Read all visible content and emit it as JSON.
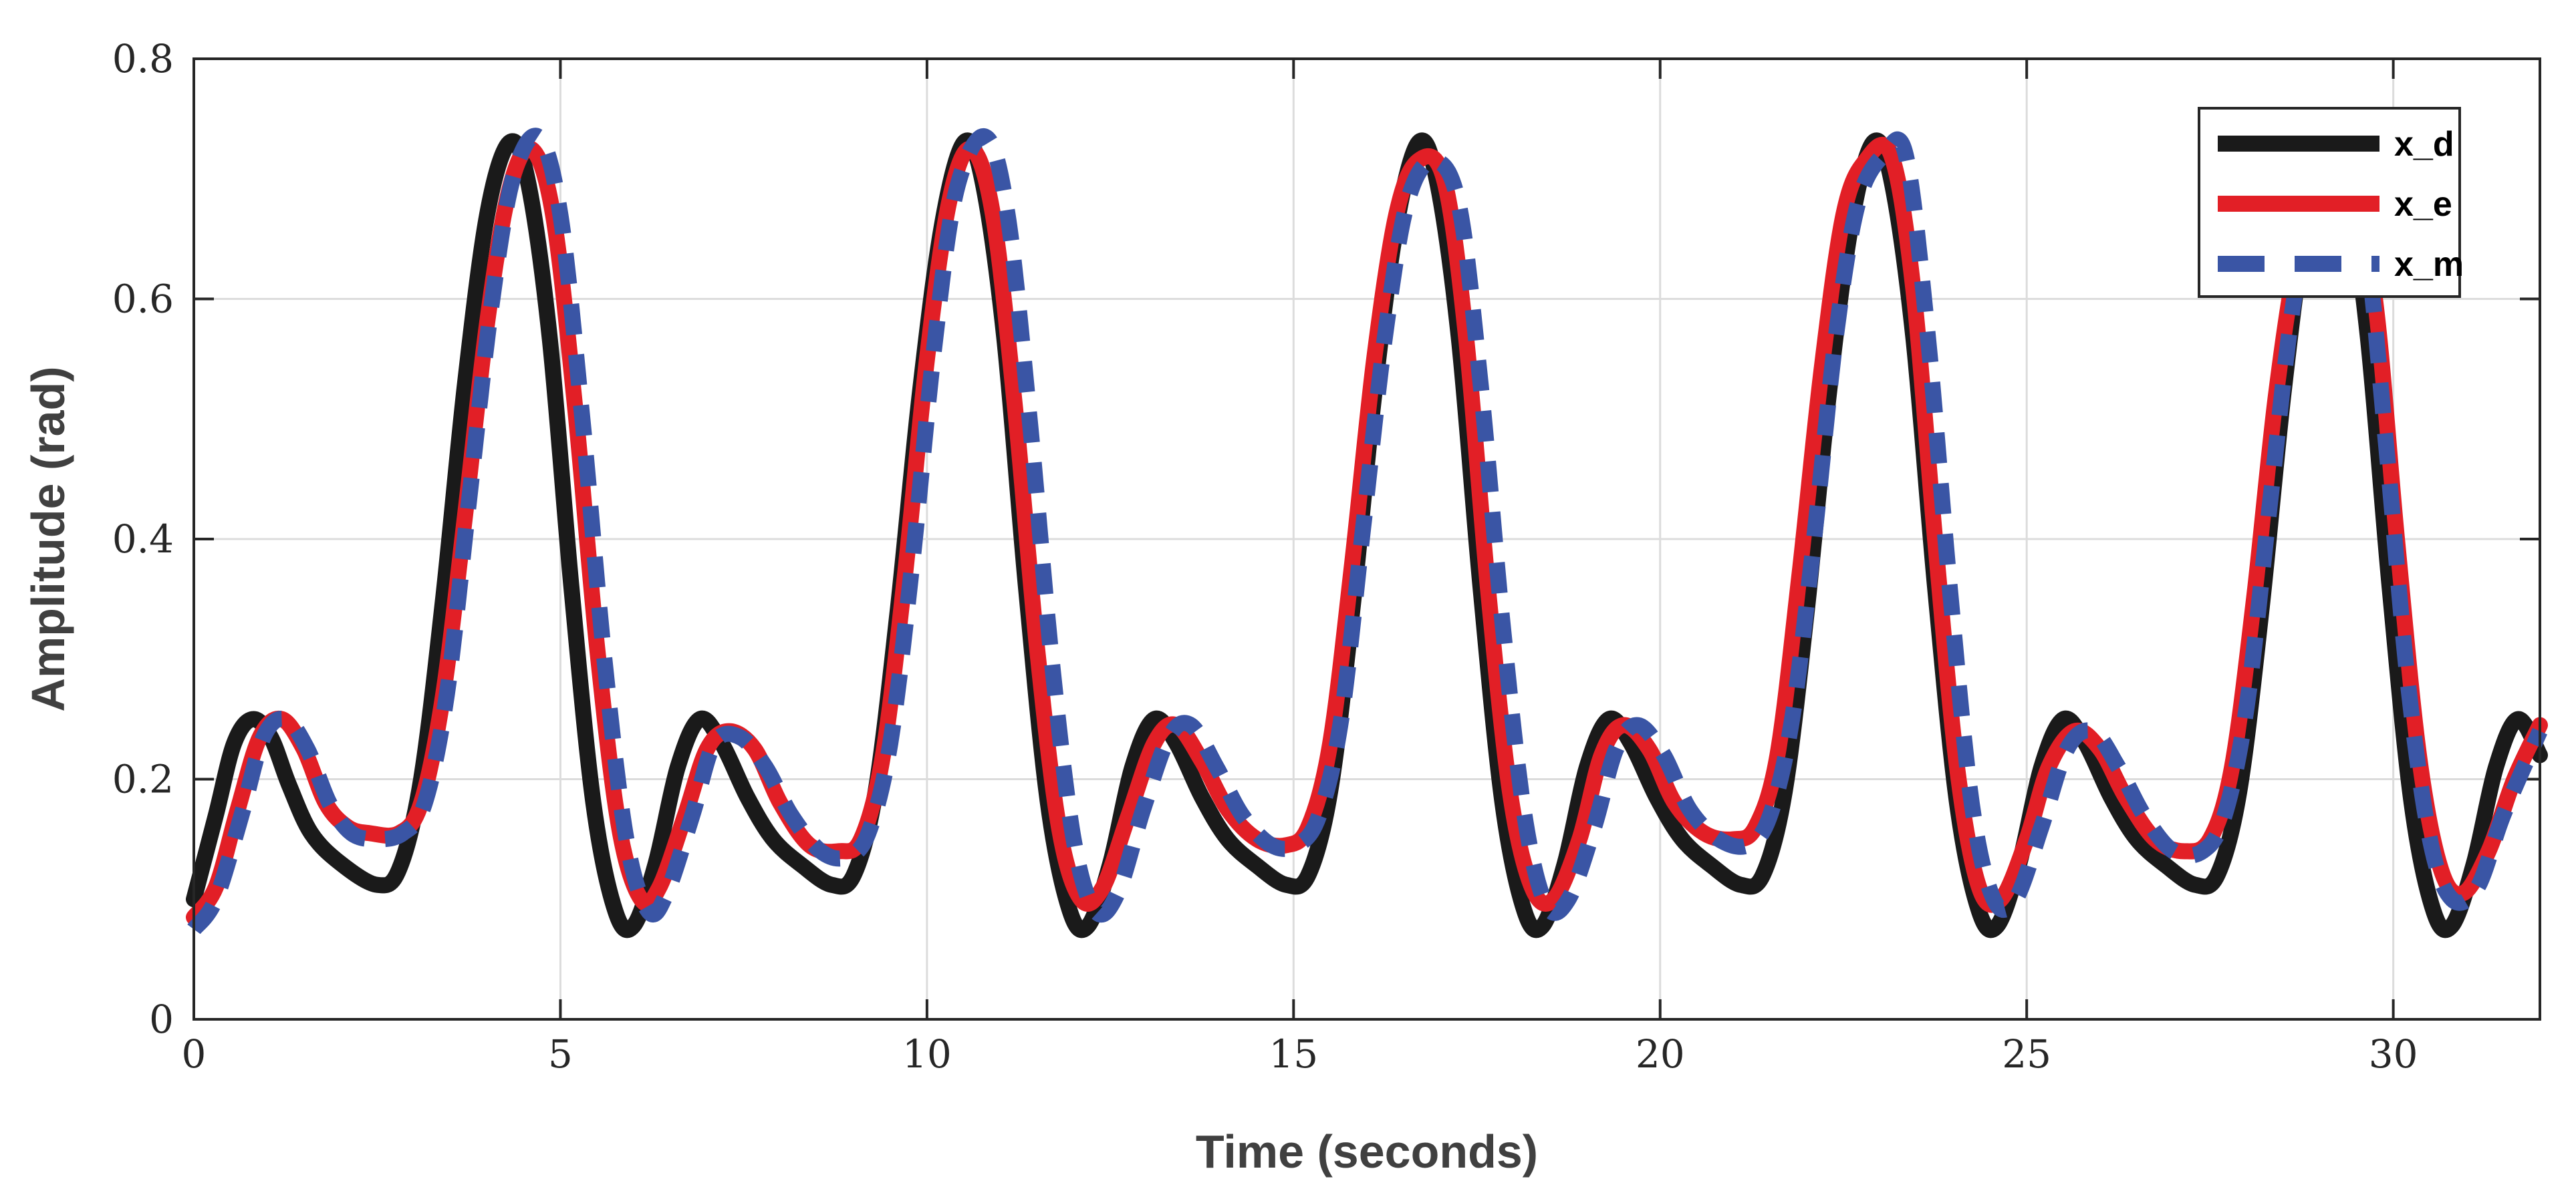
{
  "chart_data": {
    "type": "line",
    "title": "",
    "xlabel": "Time (seconds)",
    "ylabel": "Amplitude (rad)",
    "xlim": [
      0,
      32
    ],
    "ylim": [
      0,
      0.8
    ],
    "xticks": [
      0,
      5,
      10,
      15,
      20,
      25,
      30
    ],
    "xtick_labels": [
      "0",
      "5",
      "10",
      "15",
      "20",
      "25",
      "30"
    ],
    "yticks": [
      0,
      0.2,
      0.4,
      0.6,
      0.8
    ],
    "ytick_labels": [
      "0",
      "0.2",
      "0.4",
      "0.6",
      "0.8"
    ],
    "grid": true,
    "legend_position": "top-right",
    "series": [
      {
        "name": "x_d",
        "color": "#1a1a1a",
        "style": "solid",
        "points": [
          [
            0,
            0.1
          ],
          [
            0.3,
            0.17
          ],
          [
            0.55,
            0.23
          ],
          [
            0.8,
            0.25
          ],
          [
            1.05,
            0.235
          ],
          [
            1.3,
            0.195
          ],
          [
            1.6,
            0.155
          ],
          [
            2.0,
            0.13
          ],
          [
            2.5,
            0.112
          ],
          [
            2.8,
            0.125
          ],
          [
            3.1,
            0.2
          ],
          [
            3.4,
            0.35
          ],
          [
            3.7,
            0.53
          ],
          [
            4.0,
            0.67
          ],
          [
            4.3,
            0.73
          ],
          [
            4.55,
            0.7
          ],
          [
            4.85,
            0.57
          ],
          [
            5.15,
            0.36
          ],
          [
            5.45,
            0.18
          ],
          [
            5.75,
            0.09
          ],
          [
            6.0,
            0.078
          ],
          [
            6.3,
            0.13
          ],
          [
            6.6,
            0.21
          ],
          [
            6.9,
            0.25
          ],
          [
            7.2,
            0.23
          ],
          [
            7.55,
            0.185
          ],
          [
            7.9,
            0.15
          ],
          [
            8.3,
            0.128
          ],
          [
            8.7,
            0.112
          ],
          [
            9.0,
            0.12
          ],
          [
            9.3,
            0.19
          ],
          [
            9.6,
            0.34
          ],
          [
            9.9,
            0.52
          ],
          [
            10.2,
            0.66
          ],
          [
            10.5,
            0.73
          ],
          [
            10.75,
            0.7
          ],
          [
            11.05,
            0.57
          ],
          [
            11.35,
            0.36
          ],
          [
            11.65,
            0.18
          ],
          [
            11.95,
            0.09
          ],
          [
            12.2,
            0.078
          ],
          [
            12.5,
            0.13
          ],
          [
            12.8,
            0.21
          ],
          [
            13.1,
            0.25
          ],
          [
            13.4,
            0.23
          ],
          [
            13.75,
            0.185
          ],
          [
            14.1,
            0.15
          ],
          [
            14.5,
            0.128
          ],
          [
            14.9,
            0.112
          ],
          [
            15.2,
            0.12
          ],
          [
            15.5,
            0.19
          ],
          [
            15.8,
            0.34
          ],
          [
            16.1,
            0.52
          ],
          [
            16.4,
            0.66
          ],
          [
            16.7,
            0.73
          ],
          [
            16.95,
            0.7
          ],
          [
            17.25,
            0.57
          ],
          [
            17.55,
            0.36
          ],
          [
            17.85,
            0.18
          ],
          [
            18.15,
            0.09
          ],
          [
            18.4,
            0.078
          ],
          [
            18.7,
            0.13
          ],
          [
            19.0,
            0.21
          ],
          [
            19.3,
            0.25
          ],
          [
            19.6,
            0.23
          ],
          [
            19.95,
            0.185
          ],
          [
            20.3,
            0.15
          ],
          [
            20.7,
            0.128
          ],
          [
            21.1,
            0.112
          ],
          [
            21.4,
            0.12
          ],
          [
            21.7,
            0.19
          ],
          [
            22.0,
            0.34
          ],
          [
            22.3,
            0.52
          ],
          [
            22.6,
            0.66
          ],
          [
            22.9,
            0.73
          ],
          [
            23.15,
            0.7
          ],
          [
            23.45,
            0.57
          ],
          [
            23.75,
            0.36
          ],
          [
            24.05,
            0.18
          ],
          [
            24.35,
            0.09
          ],
          [
            24.6,
            0.078
          ],
          [
            24.9,
            0.13
          ],
          [
            25.2,
            0.21
          ],
          [
            25.5,
            0.25
          ],
          [
            25.8,
            0.23
          ],
          [
            26.15,
            0.185
          ],
          [
            26.5,
            0.15
          ],
          [
            26.9,
            0.128
          ],
          [
            27.3,
            0.112
          ],
          [
            27.6,
            0.12
          ],
          [
            27.9,
            0.19
          ],
          [
            28.2,
            0.34
          ],
          [
            28.5,
            0.52
          ],
          [
            28.8,
            0.66
          ],
          [
            29.1,
            0.73
          ],
          [
            29.35,
            0.7
          ],
          [
            29.65,
            0.57
          ],
          [
            29.95,
            0.36
          ],
          [
            30.25,
            0.18
          ],
          [
            30.55,
            0.09
          ],
          [
            30.8,
            0.078
          ],
          [
            31.1,
            0.13
          ],
          [
            31.4,
            0.21
          ],
          [
            31.7,
            0.25
          ],
          [
            32.0,
            0.22
          ]
        ]
      },
      {
        "name": "x_e",
        "color": "#e21f26",
        "style": "solid",
        "points": [
          [
            0,
            0.085
          ],
          [
            0.3,
            0.11
          ],
          [
            0.6,
            0.175
          ],
          [
            0.9,
            0.235
          ],
          [
            1.2,
            0.25
          ],
          [
            1.5,
            0.225
          ],
          [
            1.8,
            0.18
          ],
          [
            2.1,
            0.16
          ],
          [
            2.4,
            0.155
          ],
          [
            2.8,
            0.155
          ],
          [
            3.1,
            0.18
          ],
          [
            3.4,
            0.27
          ],
          [
            3.7,
            0.42
          ],
          [
            4.0,
            0.58
          ],
          [
            4.3,
            0.69
          ],
          [
            4.6,
            0.725
          ],
          [
            4.9,
            0.67
          ],
          [
            5.2,
            0.51
          ],
          [
            5.5,
            0.31
          ],
          [
            5.8,
            0.16
          ],
          [
            6.1,
            0.1
          ],
          [
            6.35,
            0.11
          ],
          [
            6.7,
            0.17
          ],
          [
            7.0,
            0.225
          ],
          [
            7.3,
            0.24
          ],
          [
            7.65,
            0.225
          ],
          [
            8.0,
            0.18
          ],
          [
            8.4,
            0.145
          ],
          [
            8.8,
            0.14
          ],
          [
            9.1,
            0.15
          ],
          [
            9.4,
            0.22
          ],
          [
            9.7,
            0.37
          ],
          [
            10.0,
            0.55
          ],
          [
            10.3,
            0.68
          ],
          [
            10.6,
            0.725
          ],
          [
            10.9,
            0.67
          ],
          [
            11.2,
            0.51
          ],
          [
            11.5,
            0.31
          ],
          [
            11.8,
            0.16
          ],
          [
            12.1,
            0.1
          ],
          [
            12.4,
            0.11
          ],
          [
            12.75,
            0.17
          ],
          [
            13.1,
            0.23
          ],
          [
            13.4,
            0.245
          ],
          [
            13.75,
            0.215
          ],
          [
            14.1,
            0.175
          ],
          [
            14.5,
            0.15
          ],
          [
            14.9,
            0.145
          ],
          [
            15.2,
            0.16
          ],
          [
            15.5,
            0.23
          ],
          [
            15.8,
            0.38
          ],
          [
            16.1,
            0.55
          ],
          [
            16.4,
            0.67
          ],
          [
            16.7,
            0.715
          ],
          [
            17.05,
            0.7
          ],
          [
            17.35,
            0.57
          ],
          [
            17.65,
            0.36
          ],
          [
            17.95,
            0.19
          ],
          [
            18.25,
            0.11
          ],
          [
            18.55,
            0.1
          ],
          [
            18.9,
            0.15
          ],
          [
            19.2,
            0.22
          ],
          [
            19.5,
            0.245
          ],
          [
            19.85,
            0.225
          ],
          [
            20.2,
            0.18
          ],
          [
            20.6,
            0.155
          ],
          [
            21.0,
            0.15
          ],
          [
            21.3,
            0.16
          ],
          [
            21.6,
            0.22
          ],
          [
            21.9,
            0.37
          ],
          [
            22.2,
            0.54
          ],
          [
            22.5,
            0.67
          ],
          [
            22.8,
            0.715
          ],
          [
            23.15,
            0.72
          ],
          [
            23.45,
            0.61
          ],
          [
            23.75,
            0.4
          ],
          [
            24.05,
            0.21
          ],
          [
            24.35,
            0.11
          ],
          [
            24.65,
            0.1
          ],
          [
            25.0,
            0.15
          ],
          [
            25.3,
            0.21
          ],
          [
            25.65,
            0.24
          ],
          [
            26.0,
            0.225
          ],
          [
            26.35,
            0.185
          ],
          [
            26.75,
            0.15
          ],
          [
            27.15,
            0.14
          ],
          [
            27.5,
            0.15
          ],
          [
            27.8,
            0.21
          ],
          [
            28.1,
            0.35
          ],
          [
            28.4,
            0.52
          ],
          [
            28.7,
            0.64
          ],
          [
            29.0,
            0.7
          ],
          [
            29.4,
            0.71
          ],
          [
            29.75,
            0.6
          ],
          [
            30.05,
            0.4
          ],
          [
            30.35,
            0.22
          ],
          [
            30.65,
            0.125
          ],
          [
            30.95,
            0.105
          ],
          [
            31.3,
            0.14
          ],
          [
            31.65,
            0.2
          ],
          [
            32.0,
            0.245
          ]
        ]
      },
      {
        "name": "x_m",
        "color": "#3a55a5",
        "style": "dashed",
        "points": [
          [
            0,
            0.075
          ],
          [
            0.3,
            0.1
          ],
          [
            0.65,
            0.17
          ],
          [
            0.95,
            0.235
          ],
          [
            1.25,
            0.25
          ],
          [
            1.55,
            0.225
          ],
          [
            1.85,
            0.18
          ],
          [
            2.15,
            0.155
          ],
          [
            2.5,
            0.15
          ],
          [
            2.85,
            0.155
          ],
          [
            3.15,
            0.18
          ],
          [
            3.45,
            0.27
          ],
          [
            3.75,
            0.43
          ],
          [
            4.05,
            0.59
          ],
          [
            4.35,
            0.7
          ],
          [
            4.7,
            0.735
          ],
          [
            5.0,
            0.67
          ],
          [
            5.3,
            0.5
          ],
          [
            5.6,
            0.3
          ],
          [
            5.9,
            0.15
          ],
          [
            6.2,
            0.09
          ],
          [
            6.45,
            0.105
          ],
          [
            6.8,
            0.17
          ],
          [
            7.1,
            0.23
          ],
          [
            7.45,
            0.235
          ],
          [
            7.8,
            0.21
          ],
          [
            8.15,
            0.17
          ],
          [
            8.55,
            0.14
          ],
          [
            8.9,
            0.135
          ],
          [
            9.2,
            0.155
          ],
          [
            9.5,
            0.23
          ],
          [
            9.8,
            0.38
          ],
          [
            10.1,
            0.56
          ],
          [
            10.4,
            0.69
          ],
          [
            10.8,
            0.735
          ],
          [
            11.1,
            0.67
          ],
          [
            11.4,
            0.5
          ],
          [
            11.7,
            0.3
          ],
          [
            12.0,
            0.15
          ],
          [
            12.3,
            0.09
          ],
          [
            12.6,
            0.105
          ],
          [
            12.95,
            0.175
          ],
          [
            13.3,
            0.235
          ],
          [
            13.6,
            0.245
          ],
          [
            13.95,
            0.21
          ],
          [
            14.3,
            0.17
          ],
          [
            14.7,
            0.145
          ],
          [
            15.05,
            0.145
          ],
          [
            15.35,
            0.17
          ],
          [
            15.65,
            0.25
          ],
          [
            15.95,
            0.41
          ],
          [
            16.25,
            0.57
          ],
          [
            16.55,
            0.68
          ],
          [
            16.9,
            0.715
          ],
          [
            17.25,
            0.68
          ],
          [
            17.55,
            0.53
          ],
          [
            17.85,
            0.33
          ],
          [
            18.15,
            0.17
          ],
          [
            18.45,
            0.095
          ],
          [
            18.75,
            0.1
          ],
          [
            19.1,
            0.16
          ],
          [
            19.4,
            0.225
          ],
          [
            19.7,
            0.245
          ],
          [
            20.05,
            0.22
          ],
          [
            20.4,
            0.175
          ],
          [
            20.8,
            0.15
          ],
          [
            21.2,
            0.145
          ],
          [
            21.5,
            0.17
          ],
          [
            21.8,
            0.25
          ],
          [
            22.1,
            0.4
          ],
          [
            22.4,
            0.57
          ],
          [
            22.7,
            0.68
          ],
          [
            23.05,
            0.72
          ],
          [
            23.35,
            0.72
          ],
          [
            23.65,
            0.57
          ],
          [
            23.95,
            0.36
          ],
          [
            24.25,
            0.18
          ],
          [
            24.55,
            0.1
          ],
          [
            24.85,
            0.1
          ],
          [
            25.2,
            0.16
          ],
          [
            25.55,
            0.225
          ],
          [
            25.9,
            0.24
          ],
          [
            26.25,
            0.21
          ],
          [
            26.6,
            0.17
          ],
          [
            27.0,
            0.14
          ],
          [
            27.4,
            0.14
          ],
          [
            27.7,
            0.17
          ],
          [
            28.0,
            0.26
          ],
          [
            28.3,
            0.42
          ],
          [
            28.6,
            0.58
          ],
          [
            28.9,
            0.68
          ],
          [
            29.25,
            0.72
          ],
          [
            29.6,
            0.66
          ],
          [
            29.9,
            0.48
          ],
          [
            30.2,
            0.28
          ],
          [
            30.5,
            0.15
          ],
          [
            30.8,
            0.1
          ],
          [
            31.15,
            0.11
          ],
          [
            31.5,
            0.17
          ],
          [
            32.0,
            0.24
          ]
        ]
      }
    ]
  }
}
